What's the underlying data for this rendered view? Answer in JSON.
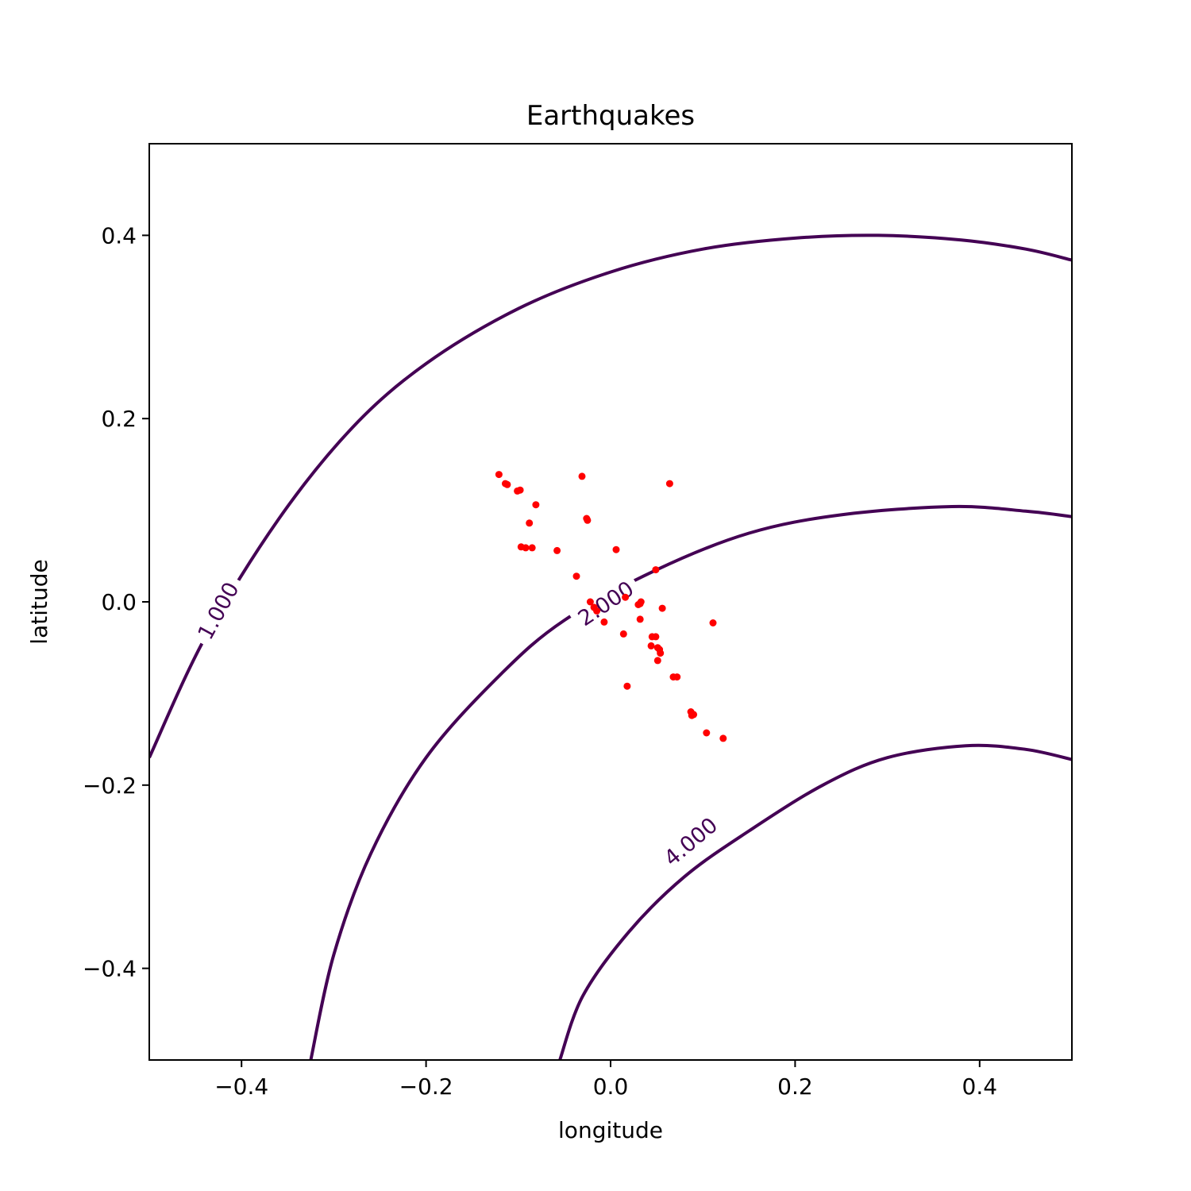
{
  "chart_data": {
    "type": "scatter",
    "title": "Earthquakes",
    "xlabel": "longitude",
    "ylabel": "latitude",
    "xlim": [
      -0.5,
      0.5
    ],
    "ylim": [
      -0.5,
      0.5
    ],
    "xticks": [
      -0.4,
      -0.2,
      0.0,
      0.2,
      0.4
    ],
    "yticks": [
      -0.4,
      -0.2,
      0.0,
      0.2,
      0.4
    ],
    "xtick_labels": [
      "−0.4",
      "−0.2",
      "0.0",
      "0.2",
      "0.4"
    ],
    "ytick_labels": [
      "−0.4",
      "−0.2",
      "0.0",
      "0.2",
      "0.4"
    ],
    "grid": false,
    "colors": {
      "contour": "#440154",
      "points": "#ff0000"
    },
    "contours": [
      {
        "level": 1.0,
        "label": "1.000",
        "label_at": [
          -0.425,
          -0.01
        ],
        "points": [
          [
            -0.5,
            -0.17
          ],
          [
            -0.44,
            -0.04
          ],
          [
            -0.36,
            0.09
          ],
          [
            -0.28,
            0.19
          ],
          [
            -0.2,
            0.26
          ],
          [
            -0.1,
            0.32
          ],
          [
            0.0,
            0.36
          ],
          [
            0.1,
            0.385
          ],
          [
            0.2,
            0.397
          ],
          [
            0.29,
            0.4
          ],
          [
            0.38,
            0.395
          ],
          [
            0.45,
            0.385
          ],
          [
            0.5,
            0.373
          ]
        ]
      },
      {
        "level": 2.0,
        "label": "2.000",
        "label_at": [
          -0.005,
          -0.002
        ],
        "points": [
          [
            -0.325,
            -0.5
          ],
          [
            -0.3,
            -0.385
          ],
          [
            -0.26,
            -0.275
          ],
          [
            -0.2,
            -0.17
          ],
          [
            -0.12,
            -0.08
          ],
          [
            -0.05,
            -0.02
          ],
          [
            0.05,
            0.035
          ],
          [
            0.15,
            0.075
          ],
          [
            0.25,
            0.095
          ],
          [
            0.37,
            0.104
          ],
          [
            0.45,
            0.099
          ],
          [
            0.5,
            0.093
          ]
        ]
      },
      {
        "level": 4.0,
        "label": "4.000",
        "label_at": [
          0.087,
          -0.262
        ],
        "points": [
          [
            -0.055,
            -0.5
          ],
          [
            -0.03,
            -0.43
          ],
          [
            0.02,
            -0.36
          ],
          [
            0.08,
            -0.3
          ],
          [
            0.15,
            -0.25
          ],
          [
            0.23,
            -0.2
          ],
          [
            0.3,
            -0.17
          ],
          [
            0.385,
            -0.157
          ],
          [
            0.45,
            -0.161
          ],
          [
            0.5,
            -0.172
          ]
        ]
      }
    ],
    "points": {
      "x": [
        -0.121,
        -0.114,
        -0.112,
        -0.101,
        -0.098,
        -0.097,
        -0.092,
        -0.088,
        -0.085,
        -0.081,
        -0.058,
        -0.031,
        -0.037,
        -0.026,
        -0.025,
        0.006,
        0.049,
        0.064,
        -0.022,
        -0.018,
        -0.015,
        -0.007,
        0.016,
        0.014,
        0.03,
        0.032,
        0.033,
        0.032,
        0.056,
        0.045,
        0.049,
        0.044,
        0.051,
        0.053,
        0.054,
        0.051,
        0.068,
        0.072,
        0.087,
        0.09,
        0.088,
        0.104,
        0.122,
        0.111,
        0.018
      ],
      "y": [
        0.139,
        0.129,
        0.128,
        0.121,
        0.122,
        0.06,
        0.059,
        0.086,
        0.059,
        0.106,
        0.056,
        0.137,
        0.028,
        0.091,
        0.089,
        0.057,
        0.035,
        0.129,
        0.0,
        -0.006,
        -0.01,
        -0.022,
        0.005,
        -0.035,
        -0.003,
        -0.002,
        0.0,
        -0.019,
        -0.007,
        -0.038,
        -0.038,
        -0.048,
        -0.05,
        -0.052,
        -0.056,
        -0.064,
        -0.082,
        -0.082,
        -0.12,
        -0.123,
        -0.124,
        -0.143,
        -0.149,
        -0.023,
        -0.092
      ]
    }
  }
}
